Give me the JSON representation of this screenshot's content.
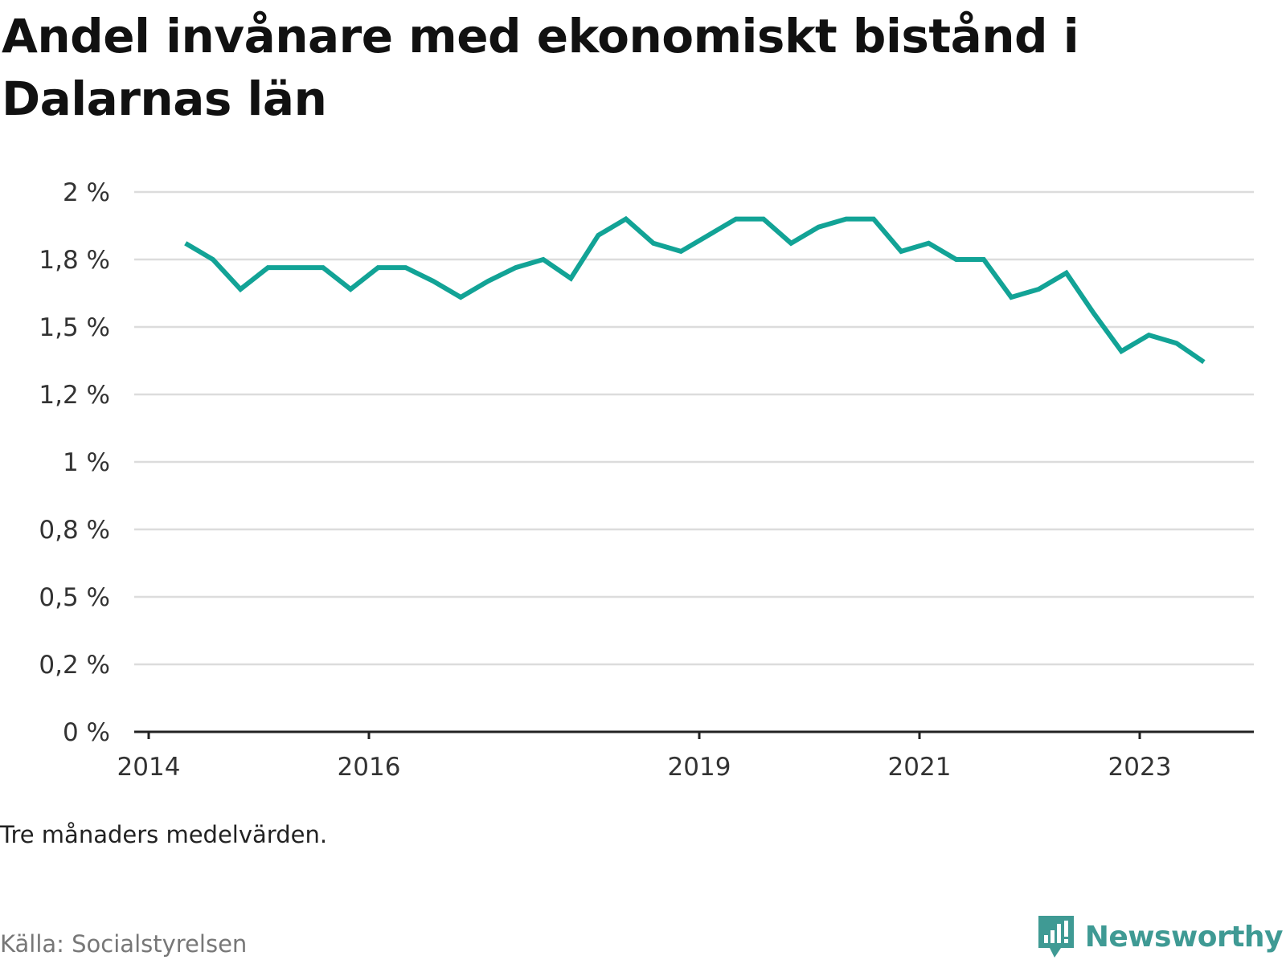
{
  "header": {
    "title": "Andel invånare med ekonomiskt bistånd i Dalarnas län"
  },
  "footer": {
    "note": "Tre månaders medelvärden.",
    "source": "Källa: Socialstyrelsen",
    "brand": "Newsworthy"
  },
  "colors": {
    "line": "#12a396",
    "grid": "#dcdcdc",
    "axis": "#222222",
    "brand": "#3f9a94"
  },
  "chart_data": {
    "type": "line",
    "title": "Andel invånare med ekonomiskt bistånd i Dalarnas län",
    "xlabel": "",
    "ylabel": "",
    "x_ticks": [
      "2014",
      "2016",
      "2019",
      "2021",
      "2023"
    ],
    "y_ticks": [
      "0 %",
      "0,2 %",
      "0,5 %",
      "0,8 %",
      "1 %",
      "1,2 %",
      "1,5 %",
      "1,8 %",
      "2 %"
    ],
    "ylim": [
      0,
      2
    ],
    "grid": true,
    "legend": "none",
    "series": [
      {
        "values": [
          {
            "x": "2014-05",
            "y": 1.81
          },
          {
            "x": "2014-08",
            "y": 1.75
          },
          {
            "x": "2014-11",
            "y": 1.64
          },
          {
            "x": "2015-02",
            "y": 1.72
          },
          {
            "x": "2015-05",
            "y": 1.72
          },
          {
            "x": "2015-08",
            "y": 1.72
          },
          {
            "x": "2015-11",
            "y": 1.64
          },
          {
            "x": "2016-02",
            "y": 1.72
          },
          {
            "x": "2016-05",
            "y": 1.72
          },
          {
            "x": "2016-08",
            "y": 1.67
          },
          {
            "x": "2016-11",
            "y": 1.61
          },
          {
            "x": "2017-02",
            "y": 1.67
          },
          {
            "x": "2017-05",
            "y": 1.72
          },
          {
            "x": "2017-08",
            "y": 1.75
          },
          {
            "x": "2017-11",
            "y": 1.68
          },
          {
            "x": "2018-02",
            "y": 1.84
          },
          {
            "x": "2018-05",
            "y": 1.9
          },
          {
            "x": "2018-08",
            "y": 1.81
          },
          {
            "x": "2018-11",
            "y": 1.78
          },
          {
            "x": "2019-02",
            "y": 1.84
          },
          {
            "x": "2019-05",
            "y": 1.9
          },
          {
            "x": "2019-08",
            "y": 1.9
          },
          {
            "x": "2019-11",
            "y": 1.81
          },
          {
            "x": "2020-02",
            "y": 1.87
          },
          {
            "x": "2020-05",
            "y": 1.9
          },
          {
            "x": "2020-08",
            "y": 1.9
          },
          {
            "x": "2020-11",
            "y": 1.78
          },
          {
            "x": "2021-02",
            "y": 1.81
          },
          {
            "x": "2021-05",
            "y": 1.75
          },
          {
            "x": "2021-08",
            "y": 1.75
          },
          {
            "x": "2021-11",
            "y": 1.61
          },
          {
            "x": "2022-02",
            "y": 1.64
          },
          {
            "x": "2022-05",
            "y": 1.7
          },
          {
            "x": "2022-08",
            "y": 1.55
          },
          {
            "x": "2022-11",
            "y": 1.41
          },
          {
            "x": "2023-02",
            "y": 1.47
          },
          {
            "x": "2023-05",
            "y": 1.44
          },
          {
            "x": "2023-08",
            "y": 1.37
          }
        ]
      }
    ]
  }
}
